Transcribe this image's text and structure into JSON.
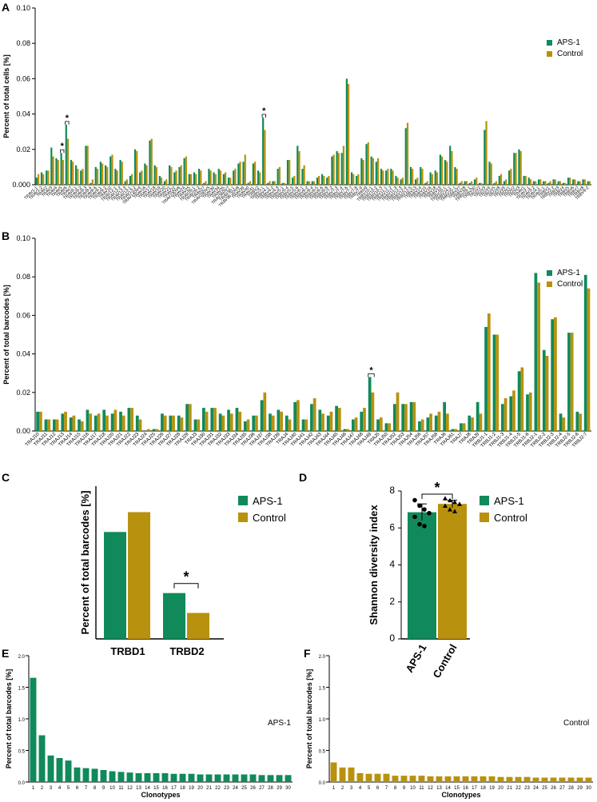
{
  "colors": {
    "aps": "#108a5a",
    "control": "#b8920e",
    "axis": "#000000"
  },
  "chart_data": [
    {
      "panel": "A",
      "type": "bar",
      "ylabel": "Percent of total cells [%]",
      "ylim": [
        0,
        0.1
      ],
      "yticks": [
        "0.000",
        "0.02",
        "0.04",
        "0.06",
        "0.08",
        "0.10"
      ],
      "legend": [
        "APS-1",
        "Control"
      ],
      "legend_position": "top-right",
      "categories": [
        "TRAV1-1",
        "TRAV1-2",
        "TRAV2",
        "TRAV3",
        "TRAV4",
        "TRAV5",
        "TRAV6",
        "TRAV7",
        "TRAV8-1",
        "TRAV8-2",
        "TRAV8-3",
        "TRAV8-4",
        "TRAV8-6",
        "TRAV9-1",
        "TRAV9-2",
        "TRAV10",
        "TRAV12-1",
        "TRAV12-2",
        "TRAV12-3",
        "TRAV13-1",
        "TRAV13-2",
        "TRAV14DV4",
        "TRAV16",
        "TRAV17",
        "TRAV18",
        "TRAV19",
        "TRAV20",
        "TRAV21",
        "TRAV22",
        "TRAV23DV6",
        "TRAV24",
        "TRAV25",
        "TRAV26-1",
        "TRAV26-2",
        "TRAV27",
        "TRAV29DV5",
        "TRAV30",
        "TRAV34",
        "TRAV35",
        "TRAV36DV7",
        "TRAV38-1",
        "TRAV38-2DV8",
        "TRAV39",
        "TRAV40",
        "TRAV41",
        "TRBV2",
        "TRBV3-1",
        "TRBV4-1",
        "TRBV4-2",
        "TRBV4-3",
        "TRBV5-1",
        "TRBV5-4",
        "TRBV5-5",
        "TRBV5-6",
        "TRBV6-1",
        "TRBV6-2",
        "TRBV6-4",
        "TRBV6-5",
        "TRBV6-6",
        "TRBV6-8",
        "TRBV7-2",
        "TRBV7-3",
        "TRBV7-4",
        "TRBV7-6",
        "TRBV7-7",
        "TRBV7-8",
        "TRBV7-9",
        "TRBV9",
        "TRBV10-1",
        "TRBV10-2",
        "TRBV10-3",
        "TRBV11-1",
        "TRBV11-2",
        "TRBV11-3",
        "TRBV12-3",
        "TRBV12-4",
        "TRBV12-5",
        "TRBV13",
        "TRBV14",
        "TRBV15",
        "TRBV16",
        "TRBV18",
        "TRBV19",
        "TRBV20-1",
        "TRBV24-1",
        "TRBV25-1",
        "TRBV27",
        "TRBV28",
        "TRBV29-1",
        "TRBV30",
        "TRGV2",
        "TRGV3",
        "TRGV4",
        "TRGV5",
        "TRGV8",
        "TRGV9",
        "TRDV1",
        "TRDV2",
        "TRDV3",
        "TRAV1",
        "TRAV2-1",
        "TRAV3-2",
        "TRAV4-1",
        "TRAV5-1",
        "TRBV1",
        "TRBV2-2",
        "TRBV3",
        "TRBV4",
        "TRBV5",
        "TRBV6",
        "TRBV7",
        "TRBV8",
        "TRBV9-2"
      ],
      "series": [
        {
          "name": "APS-1",
          "values": [
            0.004,
            0.007,
            0.008,
            0.021,
            0.015,
            0.018,
            0.034,
            0.014,
            0.011,
            0.008,
            0.022,
            0.001,
            0.01,
            0.013,
            0.011,
            0.016,
            0.009,
            0.014,
            0.002,
            0.005,
            0.02,
            0.007,
            0.012,
            0.025,
            0.011,
            0.005,
            0.002,
            0.011,
            0.007,
            0.01,
            0.015,
            0.006,
            0.007,
            0.009,
            0.001,
            0.009,
            0.007,
            0.009,
            0.006,
            0.004,
            0.008,
            0.012,
            0.013,
            0.001,
            0.012,
            0.008,
            0.038,
            0.001,
            0.002,
            0.009,
            0.001,
            0.014,
            0.004,
            0.022,
            0.009,
            0.002,
            0.002,
            0.004,
            0.006,
            0.004,
            0.016,
            0.019,
            0.018,
            0.06,
            0.007,
            0.005,
            0.015,
            0.023,
            0.016,
            0.013,
            0.009,
            0.008,
            0.009,
            0.005,
            0.003,
            0.032,
            0.01,
            0.003,
            0.01,
            0.001,
            0.007,
            0.008,
            0.017,
            0.014,
            0.022,
            0.01,
            0.001,
            0.002,
            0.001,
            0.003,
            0.001,
            0.031,
            0.013,
            0.001,
            0.005,
            0.002,
            0.008,
            0.018,
            0.02,
            0.005,
            0.004,
            0.002,
            0.003,
            0.002,
            0.001,
            0.003,
            0.002,
            0.001,
            0.004,
            0.003,
            0.002,
            0.003,
            0.002
          ],
          "_note": "",
          "_": ""
        },
        {
          "name": "Control",
          "values": [
            0.006,
            0.006,
            0.008,
            0.016,
            0.014,
            0.014,
            0.026,
            0.013,
            0.009,
            0.009,
            0.022,
            0.003,
            0.009,
            0.012,
            0.01,
            0.017,
            0.008,
            0.013,
            0.003,
            0.006,
            0.019,
            0.008,
            0.011,
            0.026,
            0.01,
            0.004,
            0.003,
            0.01,
            0.008,
            0.011,
            0.016,
            0.006,
            0.006,
            0.008,
            0.002,
            0.008,
            0.006,
            0.008,
            0.007,
            0.004,
            0.009,
            0.013,
            0.017,
            0.002,
            0.013,
            0.007,
            0.031,
            0.002,
            0.002,
            0.01,
            0.001,
            0.014,
            0.005,
            0.019,
            0.011,
            0.002,
            0.002,
            0.005,
            0.005,
            0.005,
            0.017,
            0.018,
            0.022,
            0.057,
            0.006,
            0.006,
            0.014,
            0.024,
            0.015,
            0.015,
            0.008,
            0.009,
            0.008,
            0.004,
            0.004,
            0.035,
            0.009,
            0.004,
            0.009,
            0.002,
            0.006,
            0.007,
            0.016,
            0.013,
            0.019,
            0.009,
            0.002,
            0.002,
            0.002,
            0.004,
            0.001,
            0.036,
            0.012,
            0.002,
            0.006,
            0.003,
            0.009,
            0.018,
            0.019,
            0.005,
            0.003,
            0.002,
            0.003,
            0.002,
            0.002,
            0.003,
            0.002,
            0.001,
            0.004,
            0.003,
            0.002,
            0.003,
            0.002
          ]
        }
      ],
      "significance": [
        {
          "index": 5,
          "label": "*"
        },
        {
          "index": 6,
          "label": "*"
        },
        {
          "index": 46,
          "label": "*"
        }
      ]
    },
    {
      "panel": "B",
      "type": "bar",
      "ylabel": "Percent of total barcodes [%]",
      "ylim": [
        0,
        0.1
      ],
      "yticks": [
        "0.00",
        "0.02",
        "0.04",
        "0.06",
        "0.08",
        "0.10"
      ],
      "legend": [
        "APS-1",
        "Control"
      ],
      "legend_position": "top-right",
      "categories": [
        "TRAJ10",
        "TRAJ11",
        "TRAJ12",
        "TRAJ13",
        "TRAJ14",
        "TRAJ15",
        "TRAJ16",
        "TRAJ17",
        "TRAJ18",
        "TRAJ20",
        "TRAJ21",
        "TRAJ22",
        "TRAJ23",
        "TRAJ24",
        "TRAJ25",
        "TRAJ26",
        "TRAJ27",
        "TRAJ28",
        "TRAJ29",
        "TRAJ3",
        "TRAJ30",
        "TRAJ31",
        "TRAJ32",
        "TRAJ33",
        "TRAJ34",
        "TRAJ35",
        "TRAJ36",
        "TRAJ37",
        "TRAJ38",
        "TRAJ39",
        "TRAJ4",
        "TRAJ40",
        "TRAJ41",
        "TRAJ42",
        "TRAJ43",
        "TRAJ44",
        "TRAJ45",
        "TRAJ46",
        "TRAJ47",
        "TRAJ48",
        "TRAJ49",
        "TRAJ5",
        "TRAJ50",
        "TRAJ52",
        "TRAJ53",
        "TRAJ54",
        "TRAJ56",
        "TRAJ57",
        "TRAJ58",
        "TRAJ6",
        "TRAJ61",
        "TRAJ7",
        "TRAJ8",
        "TRAJ9",
        "TRBJ1-1",
        "TRBJ1-2",
        "TRBJ1-3",
        "TRBJ1-4",
        "TRBJ1-5",
        "TRBJ1-6",
        "TRBJ2-1",
        "TRBJ2-2",
        "TRBJ2-3",
        "TRBJ2-4",
        "TRBJ2-5",
        "TRBJ2-6",
        "TRBJ2-7"
      ],
      "series": [
        {
          "name": "APS-1",
          "values": [
            0.01,
            0.006,
            0.006,
            0.009,
            0.007,
            0.006,
            0.011,
            0.008,
            0.011,
            0.009,
            0.01,
            0.012,
            0.008,
            0.0,
            0.001,
            0.009,
            0.008,
            0.008,
            0.014,
            0.006,
            0.012,
            0.012,
            0.009,
            0.011,
            0.012,
            0.005,
            0.008,
            0.016,
            0.009,
            0.011,
            0.008,
            0.015,
            0.006,
            0.014,
            0.011,
            0.008,
            0.013,
            0.001,
            0.006,
            0.01,
            0.028,
            0.006,
            0.004,
            0.014,
            0.014,
            0.015,
            0.005,
            0.007,
            0.008,
            0.015,
            0.001,
            0.004,
            0.008,
            0.015,
            0.054,
            0.05,
            0.014,
            0.018,
            0.031,
            0.019,
            0.082,
            0.042,
            0.058,
            0.009,
            0.051,
            0.01,
            0.081
          ]
        },
        {
          "name": "Control",
          "values": [
            0.01,
            0.006,
            0.006,
            0.01,
            0.008,
            0.005,
            0.009,
            0.009,
            0.008,
            0.011,
            0.008,
            0.012,
            0.006,
            0.001,
            0.001,
            0.008,
            0.008,
            0.007,
            0.014,
            0.006,
            0.01,
            0.012,
            0.008,
            0.009,
            0.01,
            0.006,
            0.008,
            0.02,
            0.008,
            0.01,
            0.006,
            0.016,
            0.006,
            0.017,
            0.009,
            0.01,
            0.012,
            0.001,
            0.007,
            0.012,
            0.02,
            0.007,
            0.004,
            0.02,
            0.014,
            0.015,
            0.006,
            0.009,
            0.01,
            0.009,
            0.001,
            0.004,
            0.007,
            0.009,
            0.061,
            0.05,
            0.017,
            0.021,
            0.033,
            0.02,
            0.077,
            0.039,
            0.059,
            0.007,
            0.051,
            0.009,
            0.074
          ]
        }
      ],
      "significance": [
        {
          "index": 40,
          "label": "*"
        }
      ]
    },
    {
      "panel": "C",
      "type": "bar",
      "ylabel": "Percent of total barcodes [%]",
      "ylim": [
        0,
        1.0
      ],
      "categories": [
        "TRBD1",
        "TRBD2"
      ],
      "legend": [
        "APS-1",
        "Control"
      ],
      "legend_position": "right",
      "series": [
        {
          "name": "APS-1",
          "values": [
            0.7,
            0.3
          ]
        },
        {
          "name": "Control",
          "values": [
            0.83,
            0.17
          ]
        }
      ],
      "significance": [
        {
          "index": 1,
          "label": "*"
        }
      ]
    },
    {
      "panel": "D",
      "type": "bar",
      "ylabel": "Shannon diversity index",
      "ylim": [
        0,
        8
      ],
      "yticks": [
        "0",
        "2",
        "4",
        "6",
        "8"
      ],
      "categories": [
        "APS-1",
        "Control"
      ],
      "legend": [
        "APS-1",
        "Control"
      ],
      "legend_position": "right",
      "values": [
        6.85,
        7.3
      ],
      "errors": [
        0.45,
        0.2
      ],
      "points": [
        [
          7.5,
          7.2,
          7.0,
          6.8,
          6.6,
          6.2,
          6.1
        ],
        [
          7.6,
          7.5,
          7.4,
          7.3,
          7.2,
          7.0,
          6.9
        ]
      ],
      "significance": [
        {
          "label": "*"
        }
      ]
    },
    {
      "panel": "E",
      "type": "bar",
      "xlabel": "Clonotypes",
      "ylabel": "Percent of total barcodes [%]",
      "ylim": [
        0,
        2.0
      ],
      "yticks": [
        "0.0",
        "0.5",
        "1.0",
        "1.5",
        "2.0"
      ],
      "annotation": "APS-1",
      "categories": [
        "1",
        "2",
        "3",
        "4",
        "5",
        "6",
        "7",
        "8",
        "9",
        "10",
        "11",
        "12",
        "13",
        "14",
        "15",
        "16",
        "17",
        "18",
        "19",
        "20",
        "21",
        "22",
        "23",
        "24",
        "25",
        "26",
        "27",
        "28",
        "29",
        "30"
      ],
      "values": [
        1.65,
        0.74,
        0.42,
        0.38,
        0.34,
        0.23,
        0.22,
        0.21,
        0.19,
        0.17,
        0.16,
        0.15,
        0.14,
        0.14,
        0.14,
        0.14,
        0.13,
        0.13,
        0.13,
        0.12,
        0.12,
        0.12,
        0.12,
        0.12,
        0.12,
        0.12,
        0.11,
        0.11,
        0.11,
        0.11
      ]
    },
    {
      "panel": "F",
      "type": "bar",
      "xlabel": "Clonotypes",
      "ylabel": "Percent of total barcodes [%]",
      "ylim": [
        0,
        2.0
      ],
      "yticks": [
        "0.0",
        "0.5",
        "1.0",
        "1.5",
        "2.0"
      ],
      "annotation": "Control",
      "categories": [
        "1",
        "2",
        "3",
        "4",
        "5",
        "6",
        "7",
        "8",
        "9",
        "10",
        "11",
        "12",
        "13",
        "14",
        "15",
        "16",
        "17",
        "18",
        "19",
        "20",
        "21",
        "22",
        "23",
        "24",
        "25",
        "26",
        "27",
        "28",
        "29",
        "30"
      ],
      "values": [
        0.31,
        0.23,
        0.23,
        0.14,
        0.13,
        0.13,
        0.13,
        0.1,
        0.1,
        0.1,
        0.1,
        0.09,
        0.09,
        0.09,
        0.09,
        0.09,
        0.09,
        0.09,
        0.09,
        0.08,
        0.08,
        0.08,
        0.08,
        0.07,
        0.07,
        0.07,
        0.07,
        0.07,
        0.07,
        0.07
      ]
    }
  ]
}
